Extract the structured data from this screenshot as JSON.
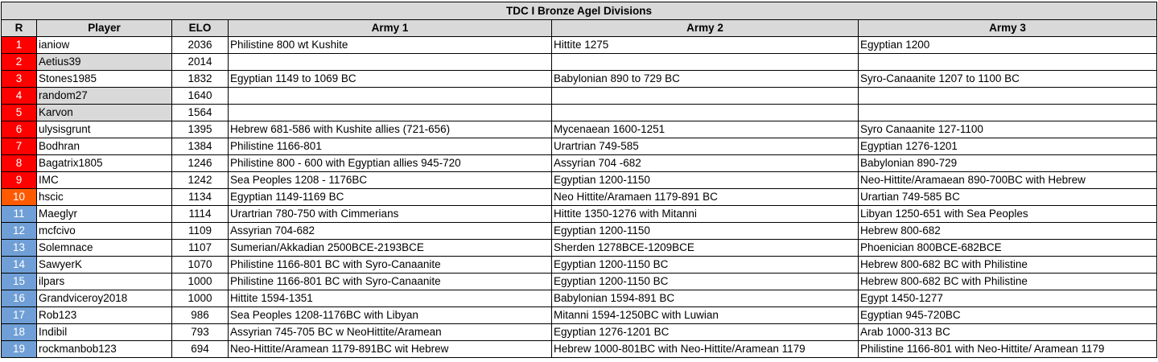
{
  "title": "TDC I Bronze Agel Divisions",
  "columns": [
    "R",
    "Player",
    "ELO",
    "Army 1",
    "Army 2",
    "Army 3"
  ],
  "colors": {
    "rank_red": "#ff0000",
    "rank_orange": "#ff5a00",
    "rank_blue": "#6f9fd6",
    "header_gray": "#d9d9d9",
    "inactive_player_gray": "#d9d9d9"
  },
  "rows": [
    {
      "r": "1",
      "player": "ianiow",
      "elo": "2036",
      "army1": "Philistine 800 wt Kushite",
      "army2": "Hittite 1275",
      "army3": "Egyptian 1200",
      "rank_color": "red",
      "inactive": false
    },
    {
      "r": "2",
      "player": "Aetius39",
      "elo": "2014",
      "army1": "",
      "army2": "",
      "army3": "",
      "rank_color": "red",
      "inactive": true
    },
    {
      "r": "3",
      "player": "Stones1985",
      "elo": "1832",
      "army1": "Egyptian 1149 to 1069 BC",
      "army2": "Babylonian 890 to 729 BC",
      "army3": "Syro-Canaanite 1207 to 1100 BC",
      "rank_color": "red",
      "inactive": false
    },
    {
      "r": "4",
      "player": "random27",
      "elo": "1640",
      "army1": "",
      "army2": "",
      "army3": "",
      "rank_color": "red",
      "inactive": true
    },
    {
      "r": "5",
      "player": "Karvon",
      "elo": "1564",
      "army1": "",
      "army2": "",
      "army3": "",
      "rank_color": "red",
      "inactive": true
    },
    {
      "r": "6",
      "player": "ulysisgrunt",
      "elo": "1395",
      "army1": "Hebrew 681-586 with Kushite allies (721-656)",
      "army2": "Mycenaean 1600-1251",
      "army3": "Syro Canaanite 127-1100",
      "rank_color": "red",
      "inactive": false
    },
    {
      "r": "7",
      "player": "Bodhran",
      "elo": "1384",
      "army1": "Philistine 1166-801",
      "army2": "Urartrian 749-585",
      "army3": "Egyptian 1276-1201",
      "rank_color": "red",
      "inactive": false
    },
    {
      "r": "8",
      "player": "Bagatrix1805",
      "elo": "1246",
      "army1": "Philistine 800 - 600 with Egyptian allies 945-720",
      "army2": "Assyrian 704 -682",
      "army3": "Babylonian 890-729",
      "rank_color": "red",
      "inactive": false
    },
    {
      "r": "9",
      "player": "IMC",
      "elo": "1242",
      "army1": "Sea Peoples 1208 - 1176BC",
      "army2": "Egyptian 1200-1150",
      "army3": "Neo-Hittite/Aramaean 890-700BC with Hebrew",
      "rank_color": "red",
      "inactive": false
    },
    {
      "r": "10",
      "player": "hscic",
      "elo": "1134",
      "army1": "Egyptian 1149-1169 BC",
      "army2": "Neo Hittite/Aramaen 1179-891 BC",
      "army3": "Urartian 749-585 BC",
      "rank_color": "orange",
      "inactive": false
    },
    {
      "r": "11",
      "player": "Maeglyr",
      "elo": "1114",
      "army1": "Urartrian 780-750 with Cimmerians",
      "army2": "Hittite 1350-1276 with Mitanni",
      "army3": "Libyan 1250-651 with Sea Peoples",
      "rank_color": "blue",
      "inactive": false
    },
    {
      "r": "12",
      "player": "mcfcivo",
      "elo": "1109",
      "army1": "Assyrian 704-682",
      "army2": "Egyptian 1200-1150",
      "army3": "Hebrew 800-682",
      "rank_color": "blue",
      "inactive": false
    },
    {
      "r": "13",
      "player": "Solemnace",
      "elo": "1107",
      "army1": "Sumerian/Akkadian 2500BCE-2193BCE",
      "army2": "Sherden 1278BCE-1209BCE",
      "army3": "Phoenician 800BCE-682BCE",
      "rank_color": "blue",
      "inactive": false
    },
    {
      "r": "14",
      "player": "SawyerK",
      "elo": "1070",
      "army1": "Philistine 1166-801 BC with Syro-Canaanite",
      "army2": "Egyptian 1200-1150 BC",
      "army3": "Hebrew 800-682 BC with Philistine",
      "rank_color": "blue",
      "inactive": false
    },
    {
      "r": "15",
      "player": "ilpars",
      "elo": "1000",
      "army1": "Philistine 1166-801 BC with Syro-Canaanite",
      "army2": "Egyptian 1200-1150 BC",
      "army3": "Hebrew 800-682 BC with Philistine",
      "rank_color": "blue",
      "inactive": false
    },
    {
      "r": "16",
      "player": "Grandviceroy2018",
      "elo": "1000",
      "army1": "Hittite 1594-1351",
      "army2": "Babylonian 1594-891 BC",
      "army3": "Egypt 1450-1277",
      "rank_color": "blue",
      "inactive": false
    },
    {
      "r": "17",
      "player": "Rob123",
      "elo": "986",
      "army1": "Sea Peoples 1208-1176BC with Libyan",
      "army2": "Mitanni 1594-1250BC with Luwian",
      "army3": "Egyptian 945-720BC",
      "rank_color": "blue",
      "inactive": false
    },
    {
      "r": "18",
      "player": "Indibil",
      "elo": "793",
      "army1": "Assyrian 745-705 BC w NeoHittite/Aramean",
      "army2": "Egyptian 1276-1201 BC",
      "army3": "Arab 1000-313 BC",
      "rank_color": "blue",
      "inactive": false
    },
    {
      "r": "19",
      "player": "rockmanbob123",
      "elo": "694",
      "army1": "Neo-Hittite/Aramean 1179-891BC wit Hebrew",
      "army2": "Hebrew 1000-801BC with Neo-Hittite/Aramean 1179",
      "army3": "Philistine 1166-801 with Neo-Hittite/ Aramean 1179",
      "rank_color": "blue",
      "inactive": false
    }
  ]
}
